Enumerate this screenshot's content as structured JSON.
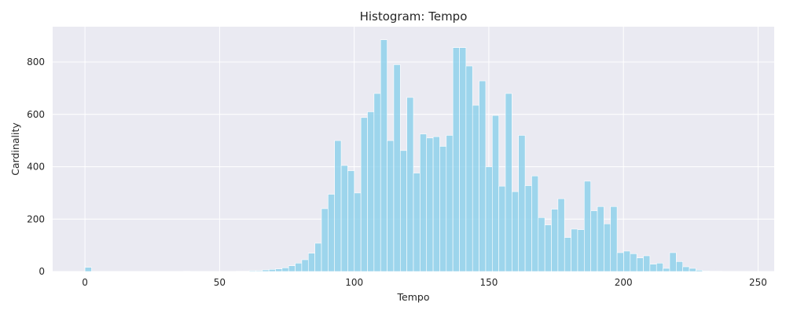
{
  "chart_data": {
    "type": "bar",
    "title": "Histogram: Tempo",
    "xlabel": "Tempo",
    "ylabel": "Cardinality",
    "xlim": [
      -12,
      256
    ],
    "ylim": [
      0,
      935
    ],
    "xticks": [
      0,
      50,
      100,
      150,
      200,
      250
    ],
    "yticks": [
      0,
      200,
      400,
      600,
      800
    ],
    "grid": true,
    "bar_color": "#87ceeb",
    "background_color": "#eaeaf2",
    "bin_width": 2.44,
    "bin_start": 0,
    "values": [
      16,
      0,
      0,
      0,
      0,
      0,
      0,
      0,
      0,
      0,
      0,
      0,
      0,
      0,
      0,
      1,
      0,
      0,
      0,
      0,
      0,
      0,
      0,
      1,
      1,
      3,
      3,
      6,
      8,
      10,
      14,
      22,
      32,
      45,
      70,
      108,
      240,
      295,
      500,
      405,
      385,
      300,
      588,
      610,
      680,
      885,
      500,
      790,
      462,
      665,
      376,
      525,
      510,
      515,
      478,
      520,
      855,
      855,
      785,
      635,
      728,
      400,
      596,
      326,
      680,
      305,
      520,
      328,
      365,
      206,
      178,
      238,
      278,
      130,
      162,
      160,
      345,
      232,
      248,
      182,
      248,
      72,
      78,
      68,
      52,
      60,
      28,
      32,
      12,
      72,
      38,
      18,
      12,
      5,
      2,
      1,
      1,
      0,
      0,
      0,
      0,
      0,
      0,
      0,
      0,
      0,
      0,
      0,
      0,
      0,
      0,
      1,
      0,
      0,
      0,
      0,
      0,
      0,
      0,
      0,
      0
    ]
  }
}
